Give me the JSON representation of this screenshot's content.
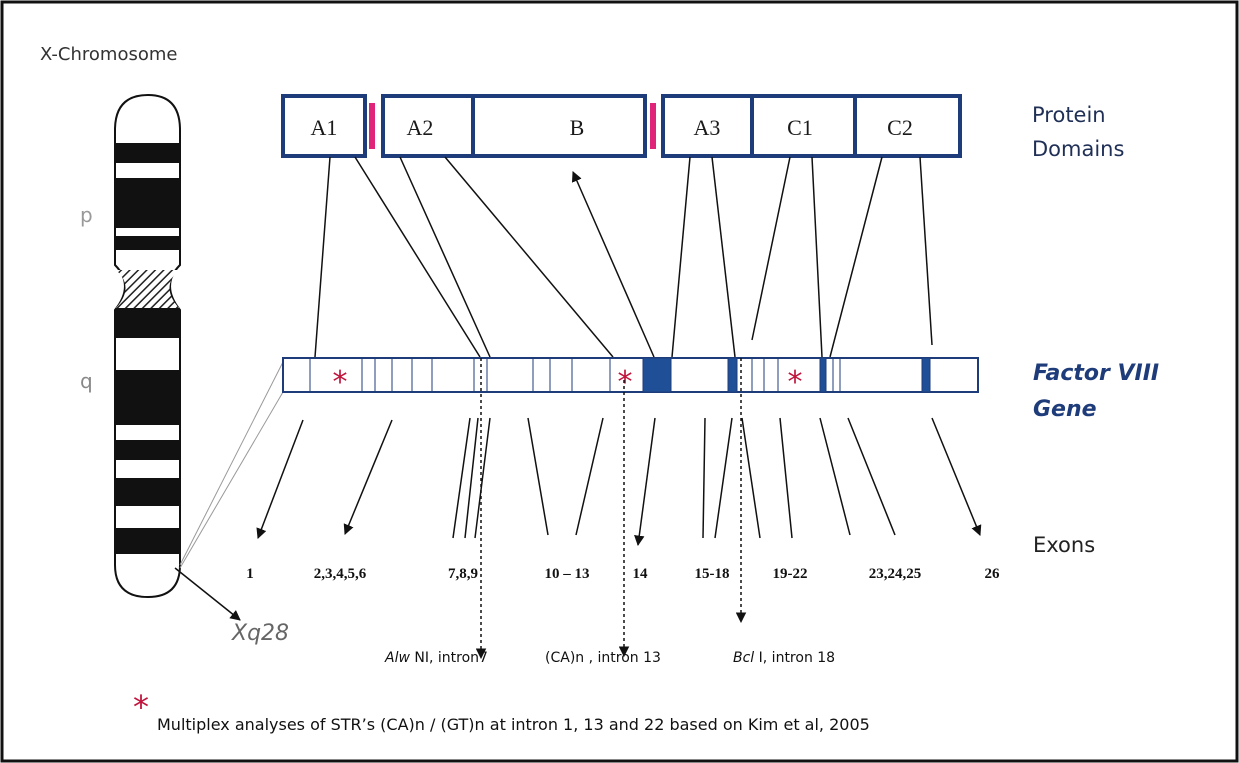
{
  "chromosome": {
    "title": "X-Chromosome",
    "arm_p": "p",
    "arm_q": "q",
    "locus": "Xq28"
  },
  "domains": {
    "label_lines": [
      "Protein",
      "Domains"
    ],
    "items": [
      "A1",
      "A2",
      "B",
      "A3",
      "C1",
      "C2"
    ]
  },
  "gene": {
    "label_lines": [
      "Factor VIII",
      "Gene"
    ],
    "stars": [
      "*",
      "*",
      "*"
    ]
  },
  "exons": {
    "label": "Exons",
    "groups": [
      "1",
      "2,3,4,5,6",
      "7,8,9",
      "10 – 13",
      "14",
      "15-18",
      "19-22",
      "23,24,25",
      "26"
    ]
  },
  "markers": [
    {
      "italic": "Alw",
      "text": " NI, intron7"
    },
    {
      "italic": "",
      "text": "(CA)n , intron 13"
    },
    {
      "italic": "Bcl",
      "text": " I, intron 18"
    }
  ],
  "footnote": {
    "star": "*",
    "text": "Multiplex analyses of STR’s (CA)n / (GT)n at intron 1, 13 and 22 based on Kim et al, 2005"
  }
}
